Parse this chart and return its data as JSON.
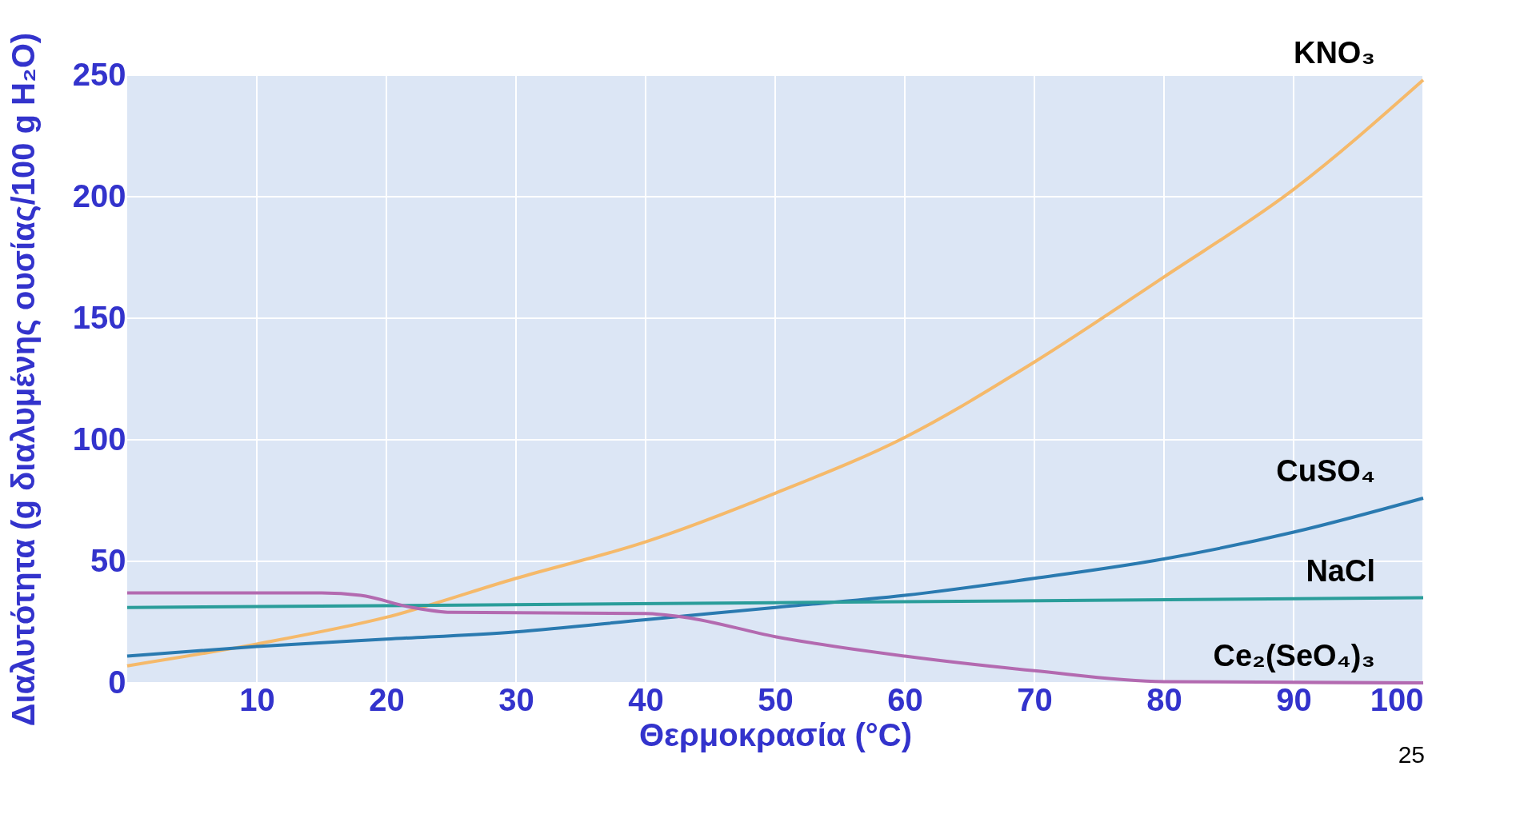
{
  "chart_data": {
    "type": "line",
    "xlabel": "Θερμοκρασία (°C)",
    "ylabel": "Διαλυτότητα (g διαλυμένης ουσίας/100 g H₂O)",
    "xlim": [
      0,
      100
    ],
    "xticks": [
      10,
      20,
      30,
      40,
      50,
      60,
      70,
      80,
      90,
      100
    ],
    "ylim": [
      0,
      250
    ],
    "yticks": [
      0,
      50,
      100,
      150,
      200,
      250
    ],
    "grid": true,
    "legend": false,
    "marker": "none",
    "line_style": "solid",
    "series": [
      {
        "name": "KNO₃",
        "color": "#f5b96a",
        "x": [
          0,
          10,
          20,
          30,
          40,
          50,
          60,
          70,
          80,
          90,
          100
        ],
        "values": [
          7,
          16,
          27,
          43,
          58,
          78,
          101,
          132,
          167,
          203,
          248
        ]
      },
      {
        "name": "CuSO₄",
        "color": "#2a7ab0",
        "x": [
          0,
          10,
          20,
          30,
          40,
          50,
          60,
          70,
          80,
          90,
          100
        ],
        "values": [
          11,
          15,
          18,
          21,
          26,
          31,
          36,
          43,
          51,
          62,
          76
        ]
      },
      {
        "name": "NaCl",
        "color": "#2a9d9a",
        "x": [
          0,
          50,
          100
        ],
        "values": [
          31,
          33,
          35
        ]
      },
      {
        "name": "Ce₂(SeO₄)₃",
        "color": "#b36ab0",
        "x": [
          0,
          15,
          18,
          22,
          25,
          40,
          43,
          50,
          60,
          70,
          80,
          100
        ],
        "values": [
          37,
          37,
          36,
          31,
          29,
          28.5,
          27,
          19,
          11,
          5,
          0.5,
          0
        ]
      }
    ],
    "annotations": [
      "25"
    ]
  }
}
